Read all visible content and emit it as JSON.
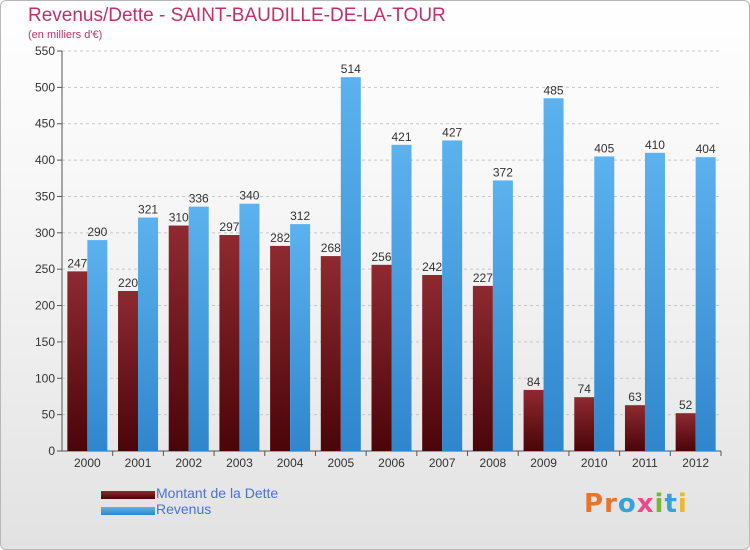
{
  "chart_data": {
    "type": "bar",
    "title": "Revenus/Dette - SAINT-BAUDILLE-DE-LA-TOUR",
    "subtitle": "(en milliers d'€)",
    "categories": [
      "2000",
      "2001",
      "2002",
      "2003",
      "2004",
      "2005",
      "2006",
      "2007",
      "2008",
      "2009",
      "2010",
      "2011",
      "2012"
    ],
    "series": [
      {
        "name": "Montant de la Dette",
        "color": "#7a1c22",
        "values": [
          247,
          220,
          310,
          297,
          282,
          268,
          256,
          242,
          227,
          84,
          74,
          63,
          52
        ]
      },
      {
        "name": "Revenus",
        "color": "#4ea6e6",
        "values": [
          290,
          321,
          336,
          340,
          312,
          514,
          421,
          427,
          372,
          485,
          405,
          410,
          404
        ]
      }
    ],
    "ylim": [
      0,
      550
    ],
    "yticks": [
      0,
      50,
      100,
      150,
      200,
      250,
      300,
      350,
      400,
      450,
      500,
      550
    ],
    "grid": true,
    "legend": "bottom-left",
    "data_labels": true
  },
  "logo": {
    "text": "Proxiti",
    "colors": [
      "#e8732a",
      "#e8732a",
      "#3aa0d8",
      "#e94b8c",
      "#7ab730",
      "#3aa0d8",
      "#e8b830"
    ]
  }
}
